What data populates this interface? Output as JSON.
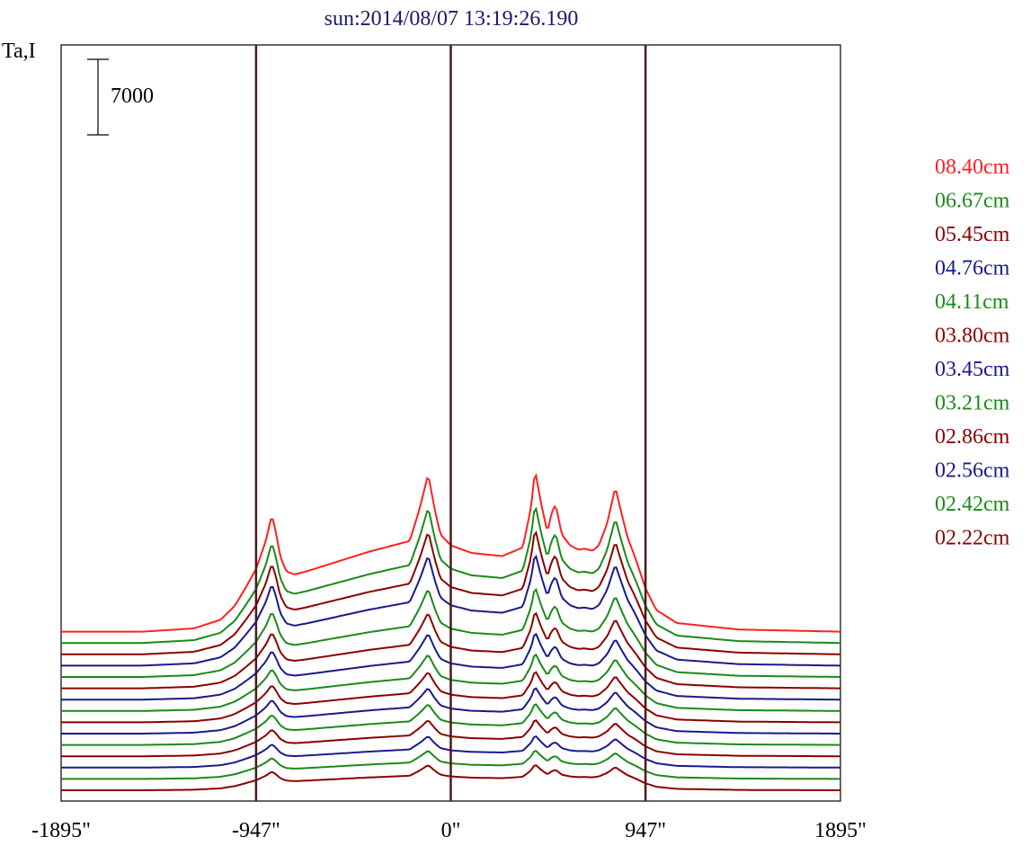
{
  "chart_data": {
    "type": "line",
    "title": "sun:2014/08/07 13:19:26.190",
    "ylabel": "Ta,I",
    "scale_bar_label": "7000",
    "xlim": [
      -1895,
      1895
    ],
    "x_ticks": [
      {
        "value": -1895,
        "label": "-1895\""
      },
      {
        "value": -947,
        "label": "-947\""
      },
      {
        "value": 0,
        "label": "0\""
      },
      {
        "value": 947,
        "label": "947\""
      },
      {
        "value": 1895,
        "label": "1895\""
      }
    ],
    "vertical_lines_at": [
      -947,
      0,
      947
    ],
    "grid": false,
    "legend_position": "right",
    "colors": {
      "title": "#1a1a6e",
      "axis_text": "#000000",
      "frame": "#000000",
      "marker_lines": "#4a1a1a",
      "red": "#ff2020",
      "green": "#1a8a1a",
      "darkred": "#8b0000",
      "navy": "#1a1a8c"
    },
    "legend": [
      {
        "label": "08.40cm",
        "color": "#ff2020"
      },
      {
        "label": "06.67cm",
        "color": "#1a8a1a"
      },
      {
        "label": "05.45cm",
        "color": "#8b0000"
      },
      {
        "label": "04.76cm",
        "color": "#1a1a8c"
      },
      {
        "label": "04.11cm",
        "color": "#1a8a1a"
      },
      {
        "label": "03.80cm",
        "color": "#8b0000"
      },
      {
        "label": "03.45cm",
        "color": "#1a1a8c"
      },
      {
        "label": "03.21cm",
        "color": "#1a8a1a"
      },
      {
        "label": "02.86cm",
        "color": "#8b0000"
      },
      {
        "label": "02.56cm",
        "color": "#1a1a8c"
      },
      {
        "label": "02.42cm",
        "color": "#1a8a1a"
      },
      {
        "label": "02.22cm",
        "color": "#8b0000"
      }
    ],
    "series_colors": [
      "#ff2020",
      "#1a8a1a",
      "#8b0000",
      "#1a1a8c",
      "#1a8a1a",
      "#8b0000",
      "#1a1a8c",
      "#1a8a1a",
      "#8b0000",
      "#1a1a8c",
      "#1a8a1a",
      "#8b0000",
      "#1a1a8c",
      "#1a8a1a",
      "#8b0000"
    ],
    "series_offsets": [
      9450,
      8400,
      7350,
      6300,
      5250,
      4200,
      3150,
      2100,
      1050,
      0,
      -1050,
      -2100,
      -3150,
      -4200,
      -5250
    ],
    "series_shape_scale": [
      1.0,
      0.86,
      0.78,
      0.7,
      0.56,
      0.48,
      0.42,
      0.36,
      0.32,
      0.29,
      0.26,
      0.23,
      0.2,
      0.18,
      0.16
    ],
    "series_limb_level": [
      9450,
      9000,
      8300,
      7700,
      6950,
      6050,
      5200,
      4400,
      3600,
      2750,
      2050,
      1350,
      650,
      -200,
      -900
    ],
    "series_baseline": [
      0,
      -1050,
      -2100,
      -3150,
      -4200,
      -5250,
      -6300,
      -7350,
      -8400,
      -9450,
      -10500,
      -11550,
      -12600,
      -13650,
      -14700
    ],
    "shape_points_x": [
      -1895,
      -1500,
      -1250,
      -1120,
      -1050,
      -1000,
      -947,
      -900,
      -870,
      -850,
      -830,
      -800,
      -760,
      -700,
      -600,
      -400,
      -200,
      -150,
      -110,
      -80,
      -50,
      0,
      100,
      250,
      350,
      390,
      410,
      440,
      470,
      490,
      510,
      540,
      580,
      620,
      650,
      690,
      720,
      760,
      800,
      830,
      860,
      900,
      947,
      1000,
      1100,
      1400,
      1895
    ],
    "shape_points_y": [
      0,
      0,
      300,
      1100,
      2400,
      4000,
      5800,
      8400,
      10800,
      9200,
      7000,
      5600,
      5300,
      5600,
      6200,
      7400,
      8400,
      11500,
      14600,
      11500,
      9000,
      8000,
      7300,
      7000,
      7800,
      11500,
      15000,
      11800,
      9200,
      11000,
      11800,
      9000,
      8000,
      7600,
      7700,
      7500,
      8000,
      10000,
      13400,
      11000,
      8700,
      6700,
      4000,
      2000,
      800,
      200,
      0
    ]
  }
}
